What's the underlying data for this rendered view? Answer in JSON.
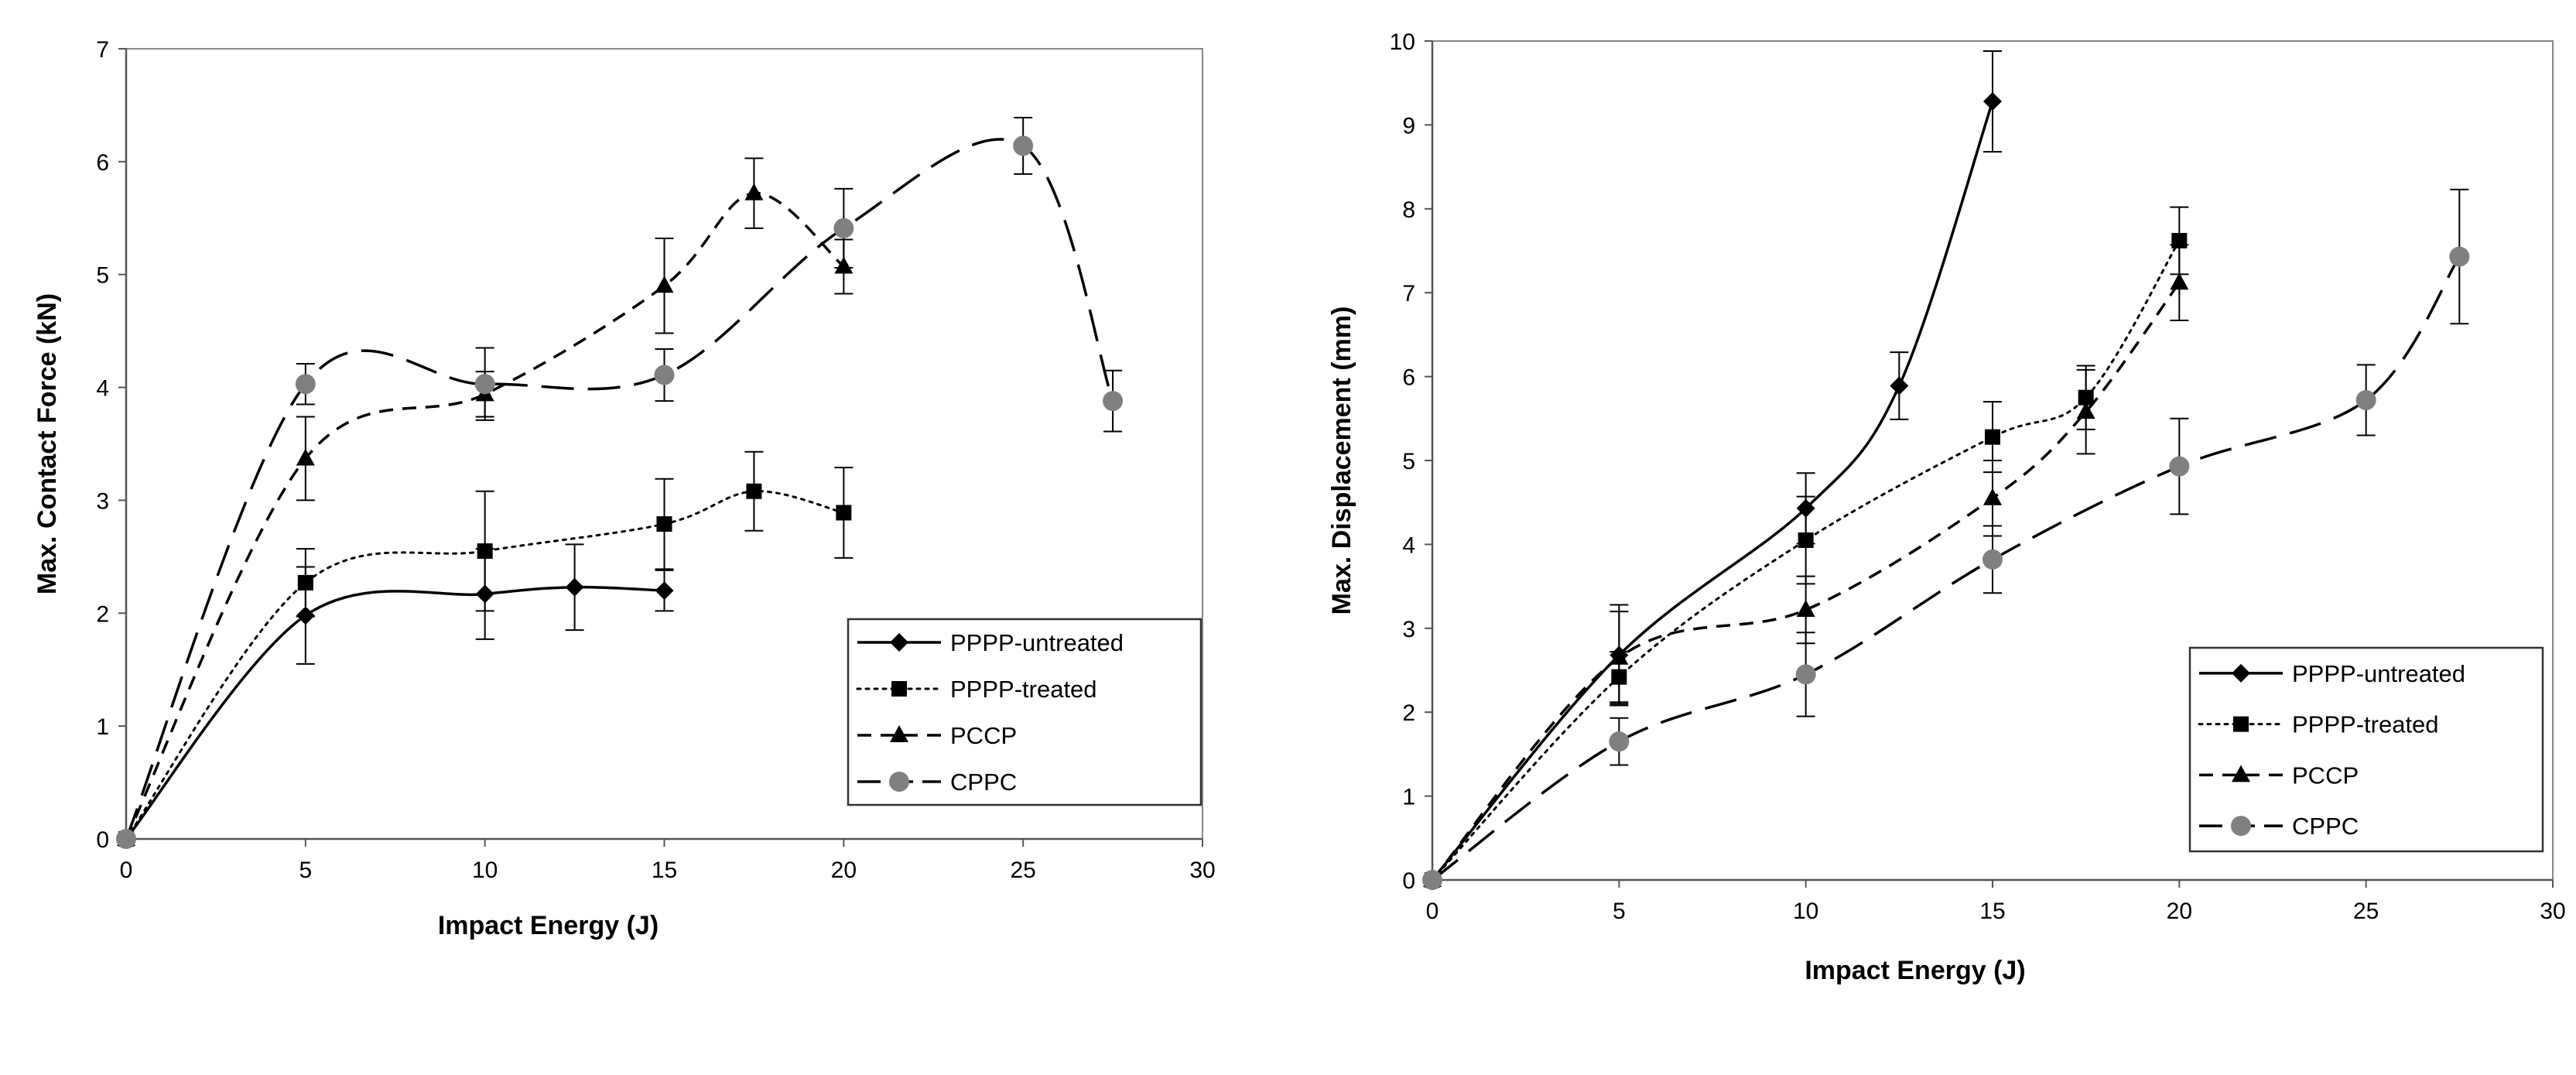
{
  "chart_data": [
    {
      "type": "line",
      "title": "",
      "xlabel": "Impact Energy (J)",
      "ylabel": "Max. Contact Force (kN)",
      "xlim": [
        0,
        30
      ],
      "ylim": [
        0,
        7
      ],
      "x_ticks": [
        "0",
        "5",
        "10",
        "15",
        "20",
        "25",
        "30"
      ],
      "y_ticks": [
        "0",
        "1",
        "2",
        "3",
        "4",
        "5",
        "6",
        "7"
      ],
      "grid": false,
      "legend_position": "bottom-right",
      "series": [
        {
          "name": "PPPP-untreated",
          "marker": "diamond",
          "line_style": "solid",
          "x": [
            0,
            5,
            10,
            12.5,
            15
          ],
          "y": [
            0,
            1.98,
            2.17,
            2.23,
            2.2
          ],
          "err": [
            0,
            0.43,
            0.4,
            0.38,
            0.18
          ]
        },
        {
          "name": "PPPP-treated",
          "marker": "square",
          "line_style": "dotted",
          "x": [
            0,
            5,
            10,
            15,
            17.5,
            20
          ],
          "y": [
            0,
            2.27,
            2.55,
            2.79,
            3.08,
            2.89
          ],
          "err": [
            0,
            0.3,
            0.53,
            0.4,
            0.35,
            0.4
          ]
        },
        {
          "name": "PCCP",
          "marker": "triangle",
          "line_style": "dashed",
          "x": [
            0,
            5,
            10,
            15,
            17.5,
            20
          ],
          "y": [
            0,
            3.37,
            3.94,
            4.9,
            5.72,
            5.07
          ],
          "err": [
            0,
            0.37,
            0.2,
            0.42,
            0.31,
            0.24
          ]
        },
        {
          "name": "CPPC",
          "marker": "circle",
          "line_style": "long-dash",
          "x": [
            0,
            5,
            10,
            15,
            20,
            25,
            27.5
          ],
          "y": [
            0,
            4.03,
            4.03,
            4.11,
            5.41,
            6.14,
            3.88
          ],
          "err": [
            0,
            0.18,
            0.32,
            0.23,
            0.35,
            0.25,
            0.27
          ]
        }
      ]
    },
    {
      "type": "line",
      "title": "",
      "xlabel": "Impact Energy (J)",
      "ylabel": "Max. Displacement (mm)",
      "xlim": [
        0,
        30
      ],
      "ylim": [
        0,
        10
      ],
      "x_ticks": [
        "0",
        "5",
        "10",
        "15",
        "20",
        "25",
        "30"
      ],
      "y_ticks": [
        "0",
        "1",
        "2",
        "3",
        "4",
        "5",
        "6",
        "7",
        "8",
        "9",
        "10"
      ],
      "grid": false,
      "legend_position": "bottom-right",
      "series": [
        {
          "name": "PPPP-untreated",
          "marker": "diamond",
          "line_style": "solid",
          "x": [
            0,
            5,
            10,
            12.5,
            15
          ],
          "y": [
            0,
            2.68,
            4.43,
            5.89,
            9.28
          ],
          "err": [
            0,
            0.6,
            0.42,
            0.4,
            0.6
          ]
        },
        {
          "name": "PPPP-treated",
          "marker": "square",
          "line_style": "dotted",
          "x": [
            0,
            5,
            10,
            15,
            17.5,
            20
          ],
          "y": [
            0,
            2.42,
            4.05,
            5.28,
            5.75,
            7.62
          ],
          "err": [
            0,
            0.3,
            0.52,
            0.42,
            0.38,
            0.4
          ]
        },
        {
          "name": "PCCP",
          "marker": "triangle",
          "line_style": "dashed",
          "x": [
            0,
            5,
            10,
            15,
            17.5,
            20
          ],
          "y": [
            0,
            2.65,
            3.22,
            4.55,
            5.58,
            7.12
          ],
          "err": [
            0,
            0.55,
            0.4,
            0.45,
            0.5,
            0.45
          ]
        },
        {
          "name": "CPPC",
          "marker": "circle",
          "line_style": "long-dash",
          "x": [
            0,
            5,
            10,
            15,
            20,
            25,
            27.5
          ],
          "y": [
            0,
            1.65,
            2.45,
            3.82,
            4.93,
            5.72,
            7.43
          ],
          "err": [
            0,
            0.28,
            0.5,
            0.4,
            0.57,
            0.42,
            0.8
          ]
        }
      ]
    }
  ]
}
